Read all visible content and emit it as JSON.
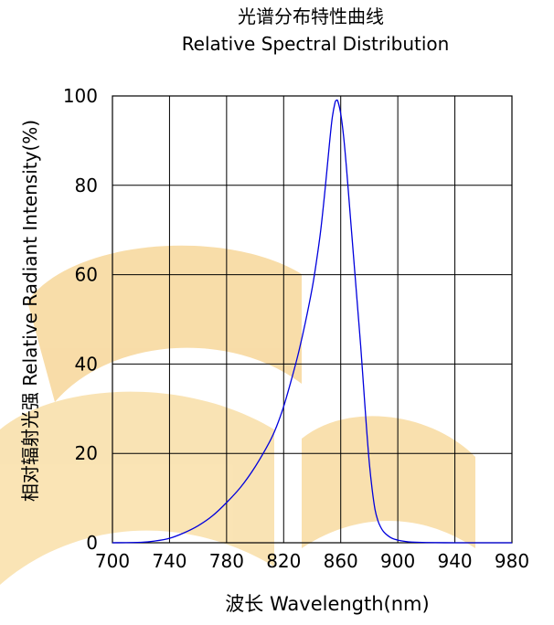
{
  "chart_data": {
    "type": "line",
    "title": "光谱分布特性曲线",
    "subtitle": "Relative Spectral Distribution",
    "xlabel": "波长  Wavelength(nm)",
    "ylabel": "相对辐射光强  Relative  Radiant Intensity(%)",
    "xlim": [
      700,
      980
    ],
    "ylim": [
      0,
      100
    ],
    "x_ticks": [
      700,
      740,
      780,
      820,
      860,
      900,
      940,
      980
    ],
    "y_ticks": [
      0,
      20,
      40,
      60,
      80,
      100
    ],
    "grid": true,
    "line_color": "#0000dd",
    "watermark_color": "#f5d08a",
    "series": [
      {
        "x": [
          700,
          720,
          730,
          740,
          750,
          760,
          770,
          780,
          790,
          800,
          810,
          815,
          820,
          825,
          830,
          835,
          840,
          843,
          846,
          849,
          852,
          854,
          856,
          857,
          858,
          860,
          862,
          864,
          866,
          868,
          870,
          872,
          874,
          876,
          878,
          880,
          882,
          884,
          886,
          888,
          890,
          893,
          896,
          900,
          905,
          910,
          920,
          940,
          960,
          980
        ],
        "y": [
          0,
          0.1,
          0.4,
          1,
          2.2,
          3.8,
          6,
          9,
          12.5,
          17,
          22.5,
          26,
          30.5,
          36,
          42,
          49,
          57,
          63,
          70,
          79,
          89,
          95,
          98.5,
          99,
          98.8,
          96,
          91,
          84,
          76,
          68,
          60,
          52,
          44,
          35,
          26,
          18,
          12,
          7.5,
          5,
          3.5,
          2.5,
          1.6,
          1,
          0.6,
          0.3,
          0.15,
          0.05,
          0,
          0,
          0
        ]
      }
    ]
  }
}
